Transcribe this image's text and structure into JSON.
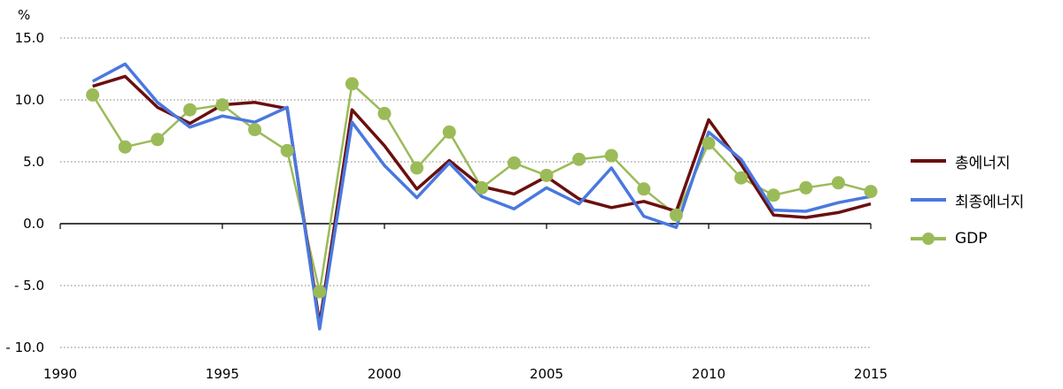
{
  "chart_data": {
    "type": "line",
    "title": "",
    "unit_label": "%",
    "x": [
      1991,
      1992,
      1993,
      1994,
      1995,
      1996,
      1997,
      1998,
      1999,
      2000,
      2001,
      2002,
      2003,
      2004,
      2005,
      2006,
      2007,
      2008,
      2009,
      2010,
      2011,
      2012,
      2013,
      2014,
      2015
    ],
    "xlim": [
      1990,
      2015
    ],
    "x_ticks": [
      "1990",
      "1995",
      "2000",
      "2005",
      "2010",
      "2015"
    ],
    "ylim": [
      -10,
      15
    ],
    "y_ticks": [
      "15.0",
      "10.0",
      "5.0",
      "0.0",
      "- 5.0",
      "- 10.0"
    ],
    "grid": "horizontal-dotted",
    "legend_position": "right",
    "series": [
      {
        "name": "총에너지",
        "color": "#6b0f0f",
        "marker": "none",
        "values": [
          11.1,
          11.9,
          9.4,
          8.1,
          9.6,
          9.8,
          9.3,
          -8.1,
          9.2,
          6.3,
          2.8,
          5.1,
          3.0,
          2.4,
          3.8,
          2.0,
          1.3,
          1.8,
          1.0,
          8.4,
          4.8,
          0.7,
          0.5,
          0.9,
          1.6
        ]
      },
      {
        "name": "최종에너지",
        "color": "#4a78e0",
        "marker": "none",
        "values": [
          11.5,
          12.9,
          9.8,
          7.8,
          8.7,
          8.2,
          9.4,
          -8.5,
          8.2,
          4.7,
          2.1,
          4.9,
          2.2,
          1.2,
          2.9,
          1.6,
          4.5,
          0.6,
          -0.3,
          7.4,
          5.2,
          1.1,
          1.0,
          1.7,
          2.2
        ]
      },
      {
        "name": "GDP",
        "color": "#9bbb59",
        "marker": "circle",
        "values": [
          10.4,
          6.2,
          6.8,
          9.2,
          9.6,
          7.6,
          5.9,
          -5.5,
          11.3,
          8.9,
          4.5,
          7.4,
          2.9,
          4.9,
          3.9,
          5.2,
          5.5,
          2.8,
          0.7,
          6.5,
          3.7,
          2.3,
          2.9,
          3.3,
          2.6
        ]
      }
    ]
  }
}
